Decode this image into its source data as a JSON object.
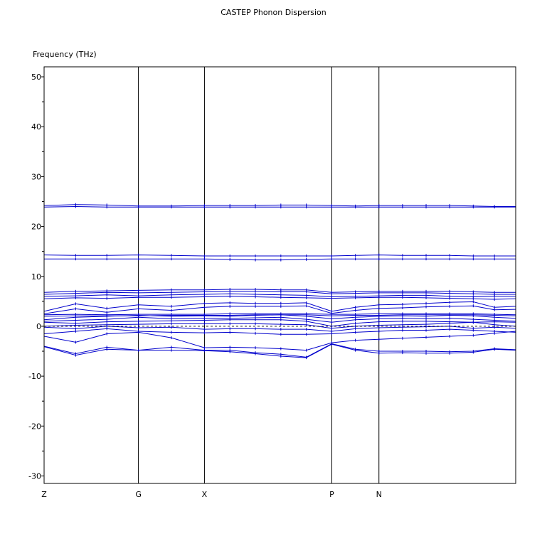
{
  "chart_data": {
    "type": "line",
    "title": "CASTEP Phonon Dispersion",
    "xlabel": "",
    "ylabel": "Frequency (THz)",
    "ylim": [
      -31.5,
      52
    ],
    "yticks": [
      -30,
      -20,
      -10,
      0,
      10,
      20,
      30,
      40,
      50
    ],
    "xlim": [
      0,
      10
    ],
    "high_symmetry_points": [
      {
        "label": "Z",
        "x": 0
      },
      {
        "label": "G",
        "x": 2
      },
      {
        "label": "X",
        "x": 3.4
      },
      {
        "label": "P",
        "x": 6.1
      },
      {
        "label": "N",
        "x": 7.1
      }
    ],
    "x": [
      0,
      0.67,
      1.33,
      2,
      2.7,
      3.4,
      3.94,
      4.48,
      5.02,
      5.56,
      6.1,
      6.6,
      7.1,
      7.6,
      8.1,
      8.6,
      9.1,
      9.55,
      10
    ],
    "zero_line": "dashed",
    "grid": false,
    "series_color": "#0000cc",
    "series": [
      {
        "values": [
          24.2,
          24.4,
          24.3,
          24.1,
          24.1,
          24.2,
          24.2,
          24.2,
          24.3,
          24.3,
          24.2,
          24.1,
          24.2,
          24.2,
          24.2,
          24.2,
          24.1,
          24.0,
          24.0
        ]
      },
      {
        "values": [
          23.9,
          24.0,
          23.9,
          23.9,
          23.9,
          23.9,
          23.9,
          23.9,
          23.9,
          23.9,
          23.9,
          23.9,
          23.9,
          23.9,
          23.9,
          23.9,
          23.9,
          23.9,
          23.9
        ]
      },
      {
        "values": [
          14.3,
          14.2,
          14.2,
          14.3,
          14.2,
          14.1,
          14.1,
          14.1,
          14.1,
          14.1,
          14.1,
          14.2,
          14.3,
          14.2,
          14.2,
          14.2,
          14.1,
          14.1,
          14.1
        ]
      },
      {
        "values": [
          13.5,
          13.5,
          13.5,
          13.5,
          13.5,
          13.5,
          13.4,
          13.3,
          13.3,
          13.4,
          13.5,
          13.5,
          13.5,
          13.5,
          13.5,
          13.5,
          13.5,
          13.5,
          13.5
        ]
      },
      {
        "values": [
          6.8,
          7.0,
          7.1,
          7.2,
          7.3,
          7.3,
          7.4,
          7.4,
          7.3,
          7.3,
          6.8,
          6.9,
          7.0,
          7.0,
          7.0,
          7.0,
          6.9,
          6.8,
          6.8
        ]
      },
      {
        "values": [
          6.4,
          6.6,
          6.8,
          6.7,
          6.8,
          6.9,
          7.0,
          7.0,
          6.9,
          6.9,
          6.5,
          6.6,
          6.7,
          6.7,
          6.7,
          6.6,
          6.5,
          6.4,
          6.4
        ]
      },
      {
        "values": [
          6.0,
          6.1,
          6.3,
          6.1,
          6.3,
          6.4,
          6.5,
          6.4,
          6.3,
          6.2,
          5.9,
          6.0,
          6.1,
          6.2,
          6.2,
          6.0,
          5.9,
          6.0,
          6.0
        ]
      },
      {
        "values": [
          5.5,
          5.7,
          5.6,
          5.8,
          5.8,
          5.9,
          6.0,
          5.9,
          5.8,
          5.7,
          5.6,
          5.7,
          5.8,
          5.8,
          5.7,
          5.6,
          5.5,
          5.4,
          5.5
        ]
      },
      {
        "values": [
          3.0,
          4.5,
          3.6,
          4.3,
          4.0,
          4.6,
          4.7,
          4.6,
          4.6,
          4.7,
          3.0,
          3.8,
          4.3,
          4.4,
          4.6,
          4.8,
          4.9,
          3.8,
          4.0
        ]
      },
      {
        "values": [
          2.5,
          3.5,
          2.8,
          3.5,
          3.2,
          3.8,
          4.0,
          4.0,
          4.0,
          4.1,
          2.6,
          3.2,
          3.6,
          3.7,
          3.9,
          4.0,
          4.1,
          3.3,
          3.4
        ]
      },
      {
        "values": [
          2.3,
          2.4,
          2.3,
          2.4,
          2.4,
          2.4,
          2.5,
          2.5,
          2.5,
          2.5,
          2.4,
          2.4,
          2.5,
          2.5,
          2.5,
          2.5,
          2.5,
          2.4,
          2.3
        ]
      },
      {
        "values": [
          2.0,
          2.1,
          2.1,
          2.1,
          2.2,
          2.2,
          2.2,
          2.3,
          2.3,
          2.3,
          2.1,
          2.2,
          2.2,
          2.3,
          2.3,
          2.3,
          2.3,
          2.2,
          2.1
        ]
      },
      {
        "values": [
          1.3,
          1.8,
          2.0,
          2.2,
          2.0,
          2.1,
          2.0,
          2.2,
          2.3,
          2.0,
          1.5,
          1.8,
          2.0,
          2.1,
          2.0,
          2.2,
          2.1,
          1.8,
          1.6
        ]
      },
      {
        "values": [
          1.0,
          1.2,
          1.4,
          1.8,
          1.5,
          1.6,
          1.6,
          1.7,
          1.8,
          1.4,
          0.8,
          1.3,
          1.5,
          1.6,
          1.5,
          1.6,
          1.4,
          1.2,
          1.0
        ]
      },
      {
        "values": [
          0.8,
          0.6,
          0.9,
          1.0,
          1.1,
          1.2,
          1.3,
          1.3,
          1.3,
          1.0,
          0.0,
          0.6,
          0.9,
          1.0,
          1.0,
          0.9,
          0.8,
          0.9,
          0.8
        ]
      },
      {
        "values": [
          0.0,
          0.2,
          0.3,
          0.4,
          0.5,
          0.5,
          0.5,
          0.5,
          0.4,
          0.3,
          -0.4,
          0.0,
          0.2,
          0.3,
          0.4,
          0.6,
          0.8,
          0.3,
          0.0
        ]
      },
      {
        "values": [
          -0.2,
          -0.5,
          0.0,
          -0.3,
          -0.2,
          -0.6,
          -0.5,
          -0.5,
          -0.6,
          -0.6,
          -1.0,
          -0.5,
          -0.3,
          -0.2,
          -0.1,
          0.0,
          -0.4,
          -0.2,
          -0.4
        ]
      },
      {
        "values": [
          -1.5,
          -1.0,
          -0.5,
          -1.0,
          -1.2,
          -1.3,
          -1.2,
          -1.4,
          -1.6,
          -1.6,
          -1.5,
          -1.2,
          -1.0,
          -0.8,
          -0.8,
          -0.6,
          -0.8,
          -1.0,
          -1.2
        ]
      },
      {
        "values": [
          -2.0,
          -3.2,
          -1.5,
          -1.2,
          -2.3,
          -4.3,
          -4.2,
          -4.3,
          -4.5,
          -4.8,
          -3.3,
          -2.8,
          -2.6,
          -2.4,
          -2.2,
          -2.0,
          -1.8,
          -1.4,
          -1.0
        ]
      },
      {
        "values": [
          -4.0,
          -5.5,
          -4.2,
          -4.8,
          -4.2,
          -4.8,
          -4.8,
          -5.3,
          -5.6,
          -6.2,
          -3.5,
          -4.6,
          -5.0,
          -5.0,
          -5.0,
          -5.1,
          -5.0,
          -4.5,
          -4.7
        ]
      },
      {
        "values": [
          -4.1,
          -5.8,
          -4.6,
          -4.8,
          -4.8,
          -4.9,
          -5.1,
          -5.5,
          -6.0,
          -6.3,
          -3.6,
          -4.8,
          -5.4,
          -5.3,
          -5.4,
          -5.4,
          -5.2,
          -4.6,
          -4.8
        ]
      }
    ]
  }
}
